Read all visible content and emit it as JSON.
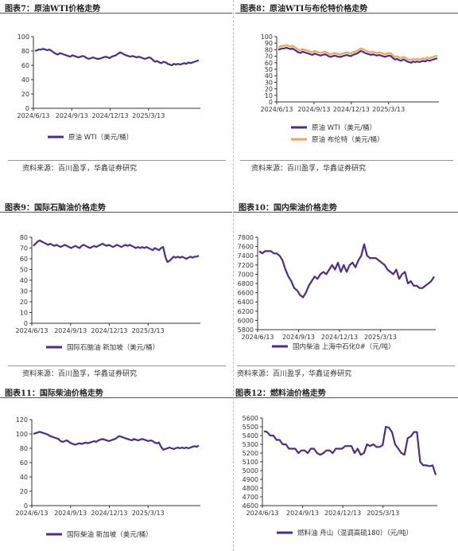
{
  "source_text": "资料来源：百川盈孚，华鑫证券研究",
  "colors": {
    "primary": "#4b2d8f",
    "secondary": "#f0a257",
    "axis": "#333333"
  },
  "chart_data": [
    {
      "id": "c7",
      "type": "line",
      "title": "图表7：原油WTI价格走势",
      "x_ticks": [
        "2024/6/13",
        "2024/9/13",
        "2024/12/13",
        "2025/3/13"
      ],
      "y_ticks": [
        0,
        20,
        40,
        60,
        80,
        100
      ],
      "ylim": [
        0,
        100
      ],
      "legend": "bottom",
      "series": [
        {
          "name": "原油 WTI（美元/桶）",
          "color": "#4b2d8f",
          "values": [
            80,
            81,
            82,
            82,
            83,
            82,
            81,
            82,
            80,
            78,
            76,
            75,
            77,
            76,
            75,
            74,
            73,
            72,
            74,
            73,
            72,
            71,
            72,
            73,
            72,
            70,
            69,
            70,
            71,
            70,
            69,
            69,
            70,
            71,
            72,
            71,
            70,
            72,
            73,
            74,
            76,
            78,
            77,
            75,
            74,
            73,
            72,
            73,
            72,
            71,
            72,
            71,
            70,
            69,
            70,
            71,
            70,
            67,
            65,
            66,
            64,
            63,
            65,
            64,
            62,
            61,
            60,
            62,
            61,
            62,
            61,
            62,
            63,
            62,
            64,
            63,
            64,
            65,
            66,
            67
          ]
        }
      ]
    },
    {
      "id": "c8",
      "type": "line",
      "title": "图表8：原油WTI与布伦特价格走势",
      "x_ticks": [
        "2024/6/13",
        "2024/9/13",
        "2024/12/13",
        "2025/3/13"
      ],
      "y_ticks": [
        0,
        10,
        20,
        30,
        40,
        50,
        60,
        70,
        80,
        90,
        100
      ],
      "ylim": [
        0,
        100
      ],
      "legend": "bottom",
      "series": [
        {
          "name": "原油 WTI（美元/桶）",
          "color": "#4b2d8f",
          "values": [
            80,
            81,
            82,
            82,
            83,
            82,
            81,
            82,
            80,
            78,
            76,
            75,
            77,
            76,
            75,
            74,
            73,
            72,
            74,
            73,
            72,
            71,
            72,
            73,
            72,
            70,
            69,
            70,
            71,
            70,
            69,
            69,
            70,
            71,
            72,
            71,
            70,
            72,
            73,
            74,
            76,
            78,
            77,
            75,
            74,
            73,
            72,
            73,
            72,
            71,
            72,
            71,
            70,
            69,
            70,
            71,
            70,
            67,
            65,
            66,
            64,
            63,
            65,
            64,
            62,
            61,
            60,
            62,
            61,
            62,
            61,
            62,
            63,
            62,
            64,
            63,
            64,
            65,
            66,
            67
          ]
        },
        {
          "name": "原油 布伦特（美元/桶）",
          "color": "#f0a257",
          "values": [
            84,
            85,
            86,
            86,
            87,
            86,
            85,
            86,
            84,
            82,
            80,
            79,
            81,
            80,
            79,
            78,
            77,
            76,
            78,
            77,
            76,
            75,
            76,
            77,
            76,
            74,
            73,
            74,
            75,
            74,
            73,
            73,
            74,
            75,
            76,
            75,
            74,
            76,
            77,
            78,
            80,
            82,
            81,
            79,
            78,
            77,
            76,
            77,
            76,
            75,
            76,
            75,
            74,
            73,
            74,
            75,
            74,
            71,
            69,
            70,
            68,
            67,
            69,
            68,
            66,
            65,
            64,
            66,
            65,
            66,
            65,
            66,
            67,
            66,
            68,
            67,
            68,
            69,
            70,
            71
          ]
        }
      ]
    },
    {
      "id": "c9",
      "type": "line",
      "title": "图表9：国际石脑油价格走势",
      "x_ticks": [
        "2024/6/13",
        "2024/9/13",
        "2024/12/13",
        "2025/3/13"
      ],
      "y_ticks": [
        0,
        10,
        20,
        30,
        40,
        50,
        60,
        70,
        80
      ],
      "ylim": [
        0,
        80
      ],
      "legend": "bottom",
      "series": [
        {
          "name": "国际石脑油 新加坡（美元/桶）",
          "color": "#4b2d8f",
          "values": [
            72,
            74,
            76,
            77,
            76,
            75,
            74,
            73,
            74,
            73,
            72,
            73,
            72,
            71,
            72,
            73,
            72,
            71,
            70,
            71,
            72,
            71,
            70,
            72,
            73,
            72,
            71,
            70,
            71,
            72,
            71,
            72,
            73,
            74,
            73,
            72,
            73,
            72,
            71,
            72,
            73,
            72,
            71,
            72,
            73,
            72,
            73,
            72,
            71,
            70,
            71,
            70,
            71,
            70,
            71,
            70,
            69,
            68,
            70,
            69,
            68,
            70,
            71,
            62,
            57,
            58,
            60,
            62,
            61,
            62,
            61,
            62,
            61,
            60,
            61,
            62,
            61,
            62,
            62,
            63
          ]
        }
      ]
    },
    {
      "id": "c10",
      "type": "line",
      "title": "图表10：国内柴油价格走势",
      "x_ticks": [
        "2024/6/13",
        "2024/9/13",
        "2024/12/13",
        "2025/3/13"
      ],
      "y_ticks": [
        5800,
        6000,
        6200,
        6400,
        6600,
        6800,
        7000,
        7200,
        7400,
        7600,
        7800
      ],
      "ylim": [
        5800,
        7800
      ],
      "legend": "bottom",
      "series": [
        {
          "name": "国内柴油 上海中石化0#（元/吨）",
          "color": "#4b2d8f",
          "values": [
            7500,
            7450,
            7500,
            7500,
            7500,
            7450,
            7450,
            7400,
            7300,
            7100,
            6950,
            6850,
            6700,
            6650,
            6550,
            6500,
            6600,
            6750,
            6850,
            6950,
            6900,
            7000,
            7050,
            7000,
            7100,
            7200,
            7100,
            7250,
            7050,
            7200,
            7050,
            7200,
            7250,
            7150,
            7300,
            7400,
            7650,
            7400,
            7350,
            7350,
            7350,
            7300,
            7250,
            7200,
            7100,
            7050,
            7000,
            7100,
            6900,
            7000,
            7050,
            6800,
            6850,
            6750,
            6750,
            6700,
            6700,
            6750,
            6800,
            6850,
            6950
          ]
        }
      ]
    },
    {
      "id": "c11",
      "type": "line",
      "title": "图表11：国际柴油价格走势",
      "x_ticks": [
        "2024/6/13",
        "2024/9/13",
        "2024/12/13",
        "2025/3/13"
      ],
      "y_ticks": [
        0,
        20,
        40,
        60,
        80,
        100,
        120
      ],
      "ylim": [
        0,
        120
      ],
      "legend": "bottom",
      "series": [
        {
          "name": "国际柴油 新加坡（美元/桶）",
          "color": "#4b2d8f",
          "values": [
            100,
            101,
            102,
            103,
            102,
            101,
            100,
            99,
            97,
            96,
            95,
            94,
            93,
            90,
            89,
            90,
            91,
            89,
            87,
            86,
            85,
            86,
            87,
            86,
            87,
            88,
            87,
            88,
            89,
            90,
            89,
            91,
            92,
            93,
            92,
            91,
            90,
            91,
            92,
            93,
            95,
            97,
            96,
            95,
            94,
            93,
            92,
            91,
            93,
            92,
            91,
            92,
            93,
            92,
            91,
            90,
            91,
            90,
            88,
            87,
            88,
            82,
            78,
            79,
            80,
            81,
            80,
            79,
            80,
            81,
            80,
            81,
            80,
            81,
            80,
            81,
            82,
            83,
            82,
            84
          ]
        }
      ]
    },
    {
      "id": "c12",
      "type": "line",
      "title": "图表12：燃料油价格走势",
      "x_ticks": [
        "2024/6/13",
        "2024/9/13",
        "2024/12/13",
        "2025/3/13"
      ],
      "y_ticks": [
        4600,
        4700,
        4800,
        4900,
        5000,
        5100,
        5200,
        5300,
        5400,
        5500,
        5600
      ],
      "ylim": [
        4600,
        5600
      ],
      "legend": "bottom",
      "series": [
        {
          "name": "燃料油 舟山（混调高硫180）（元/吨）",
          "color": "#4b2d8f",
          "values": [
            5450,
            5440,
            5400,
            5400,
            5350,
            5350,
            5300,
            5300,
            5250,
            5250,
            5250,
            5200,
            5230,
            5230,
            5200,
            5250,
            5250,
            5200,
            5180,
            5200,
            5230,
            5230,
            5200,
            5250,
            5250,
            5250,
            5280,
            5280,
            5280,
            5200,
            5250,
            5180,
            5200,
            5300,
            5280,
            5300,
            5270,
            5270,
            5290,
            5500,
            5490,
            5440,
            5300,
            5250,
            5200,
            5180,
            5370,
            5390,
            5440,
            5440,
            5100,
            5060,
            5060,
            5050,
            5060,
            4950
          ]
        }
      ]
    }
  ]
}
